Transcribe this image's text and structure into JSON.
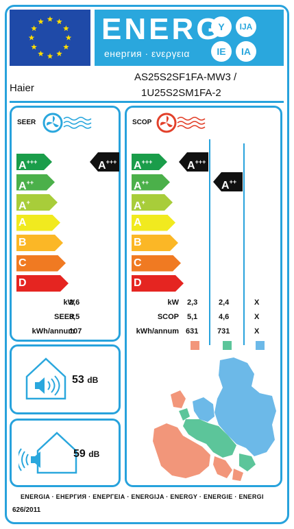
{
  "header": {
    "energ_word": "ENERG",
    "energ_sub": "енергия · ενεργεια",
    "badges": [
      "Y",
      "IJA",
      "IE",
      "IA"
    ],
    "colors": {
      "banner": "#2aa7dd",
      "flag": "#1f4aa8",
      "stars": "#ffdd00",
      "frame": "#27a2dc"
    }
  },
  "supplier": "Haier",
  "model": {
    "line1": "AS25S2SF1FA-MW3 /",
    "line2": "1U25S2SM1FA-2"
  },
  "classes": [
    {
      "name": "A",
      "sup": "+++",
      "color": "#1a9d4a"
    },
    {
      "name": "A",
      "sup": "++",
      "color": "#4bb04a"
    },
    {
      "name": "A",
      "sup": "+",
      "color": "#a8cd3a"
    },
    {
      "name": "A",
      "sup": "",
      "color": "#f1ea1f"
    },
    {
      "name": "B",
      "sup": "",
      "color": "#fbb726"
    },
    {
      "name": "C",
      "sup": "",
      "color": "#f07a22"
    },
    {
      "name": "D",
      "sup": "",
      "color": "#e52521"
    }
  ],
  "seer": {
    "title": "SEER",
    "rating": {
      "name": "A",
      "sup": "+++"
    },
    "rows": [
      {
        "label": "kW",
        "value": "2,6"
      },
      {
        "label": "SEER",
        "value": "8,5"
      },
      {
        "label": "kWh/annum",
        "value": "107"
      }
    ]
  },
  "scop": {
    "title": "SCOP",
    "rating_col1": {
      "name": "A",
      "sup": "+++"
    },
    "rating_col2": {
      "name": "A",
      "sup": "++"
    },
    "rows": [
      {
        "label": "kW",
        "values": [
          "2,3",
          "2,4",
          "X"
        ]
      },
      {
        "label": "SCOP",
        "values": [
          "5,1",
          "4,6",
          "X"
        ]
      },
      {
        "label": "kWh/annum",
        "values": [
          "631",
          "731",
          "X"
        ]
      }
    ],
    "zone_colors": [
      "#f2967a",
      "#5cc59a",
      "#6cb9e8"
    ]
  },
  "noise": {
    "indoor": {
      "value": "53",
      "unit": "dB"
    },
    "outdoor": {
      "value": "59",
      "unit": "dB"
    }
  },
  "footer": {
    "languages": "ENERGIA · ЕНЕРГИЯ · ΕΝΕΡΓΕΙΑ · ENERGIJA · ENERGY · ENERGIE · ENERGI",
    "regulation": "626/2011"
  }
}
